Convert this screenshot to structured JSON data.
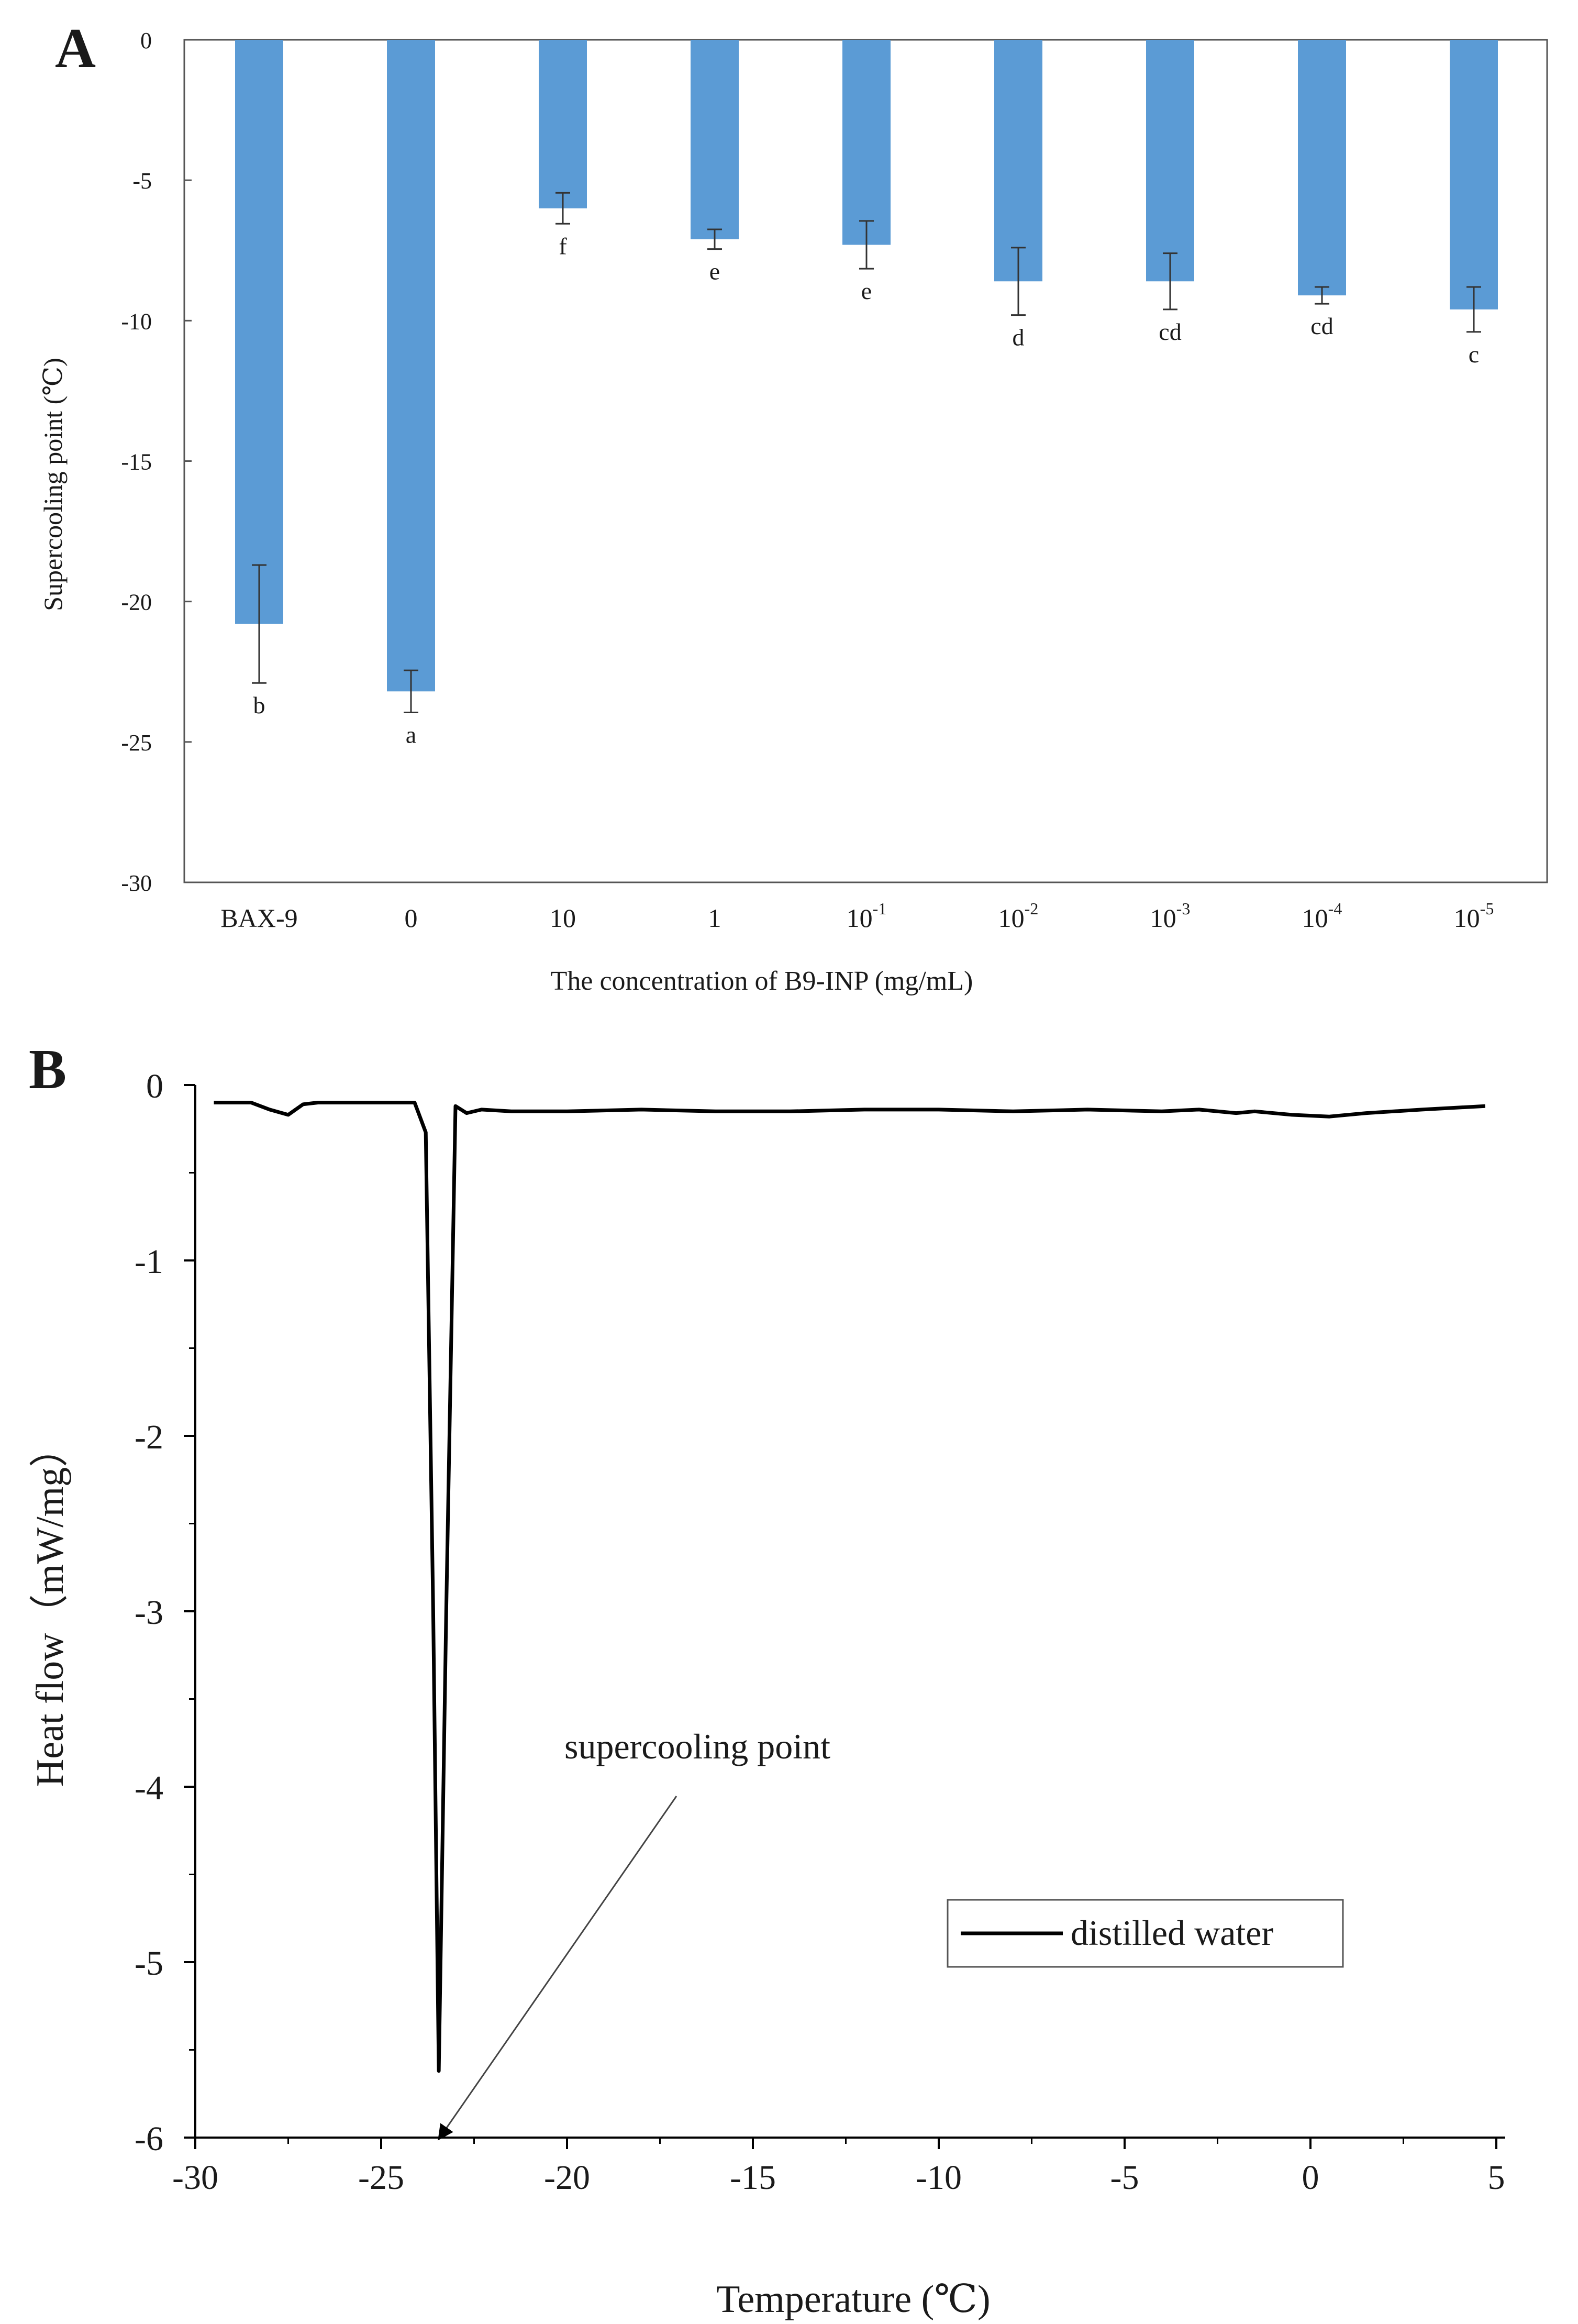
{
  "chart_data": [
    {
      "panel": "A",
      "type": "bar",
      "ylabel": "Supercooling point (℃)",
      "xlabel": "The concentration of B9-INP (mg/mL)",
      "ylim": [
        -30,
        0
      ],
      "yticks": [
        0,
        -5,
        -10,
        -15,
        -20,
        -25,
        -30
      ],
      "categories": [
        {
          "base": "BAX-9",
          "exp": ""
        },
        {
          "base": "0",
          "exp": ""
        },
        {
          "base": "10",
          "exp": ""
        },
        {
          "base": "1",
          "exp": ""
        },
        {
          "base": "10",
          "exp": "-1"
        },
        {
          "base": "10",
          "exp": "-2"
        },
        {
          "base": "10",
          "exp": "-3"
        },
        {
          "base": "10",
          "exp": "-4"
        },
        {
          "base": "10",
          "exp": "-5"
        }
      ],
      "values": [
        -20.8,
        -23.2,
        -6.0,
        -7.1,
        -7.3,
        -8.6,
        -8.6,
        -9.1,
        -9.6
      ],
      "errors": [
        2.1,
        0.75,
        0.55,
        0.35,
        0.85,
        1.2,
        1.0,
        0.3,
        0.8
      ],
      "significance": [
        "b",
        "a",
        "f",
        "e",
        "e",
        "d",
        "cd",
        "cd",
        "c"
      ],
      "bar_color": "#5b9bd5"
    },
    {
      "panel": "B",
      "type": "line",
      "xlabel": "Temperature (℃)",
      "ylabel": "Heat flow（mW/mg）",
      "xlim": [
        -30,
        5
      ],
      "ylim": [
        -6,
        0
      ],
      "xticks": [
        -30,
        -25,
        -20,
        -15,
        -10,
        -5,
        0,
        5
      ],
      "yticks": [
        0,
        -1,
        -2,
        -3,
        -4,
        -5,
        -6
      ],
      "series": [
        {
          "name": "distilled water",
          "color": "#000000",
          "x": [
            -29.5,
            -28.5,
            -28.0,
            -27.5,
            -27.1,
            -26.7,
            -26.0,
            -25.0,
            -24.5,
            -24.1,
            -23.8,
            -23.6,
            -23.45,
            -23.25,
            -23.0,
            -22.7,
            -22.3,
            -21.5,
            -20.0,
            -18.0,
            -16.0,
            -14.0,
            -12.0,
            -10.0,
            -8.0,
            -6.0,
            -4.0,
            -3.0,
            -2.0,
            -1.5,
            -0.5,
            0.5,
            1.5,
            3.0,
            4.7
          ],
          "y": [
            -0.1,
            -0.1,
            -0.14,
            -0.17,
            -0.11,
            -0.1,
            -0.1,
            -0.1,
            -0.1,
            -0.1,
            -0.27,
            -3.0,
            -5.62,
            -3.0,
            -0.12,
            -0.16,
            -0.14,
            -0.15,
            -0.15,
            -0.14,
            -0.15,
            -0.15,
            -0.14,
            -0.14,
            -0.15,
            -0.14,
            -0.15,
            -0.14,
            -0.16,
            -0.15,
            -0.17,
            -0.18,
            -0.16,
            -0.14,
            -0.12
          ]
        }
      ],
      "annotation": "supercooling point",
      "legend": "distilled water"
    }
  ],
  "panel_labels": {
    "a": "A",
    "b": "B"
  }
}
